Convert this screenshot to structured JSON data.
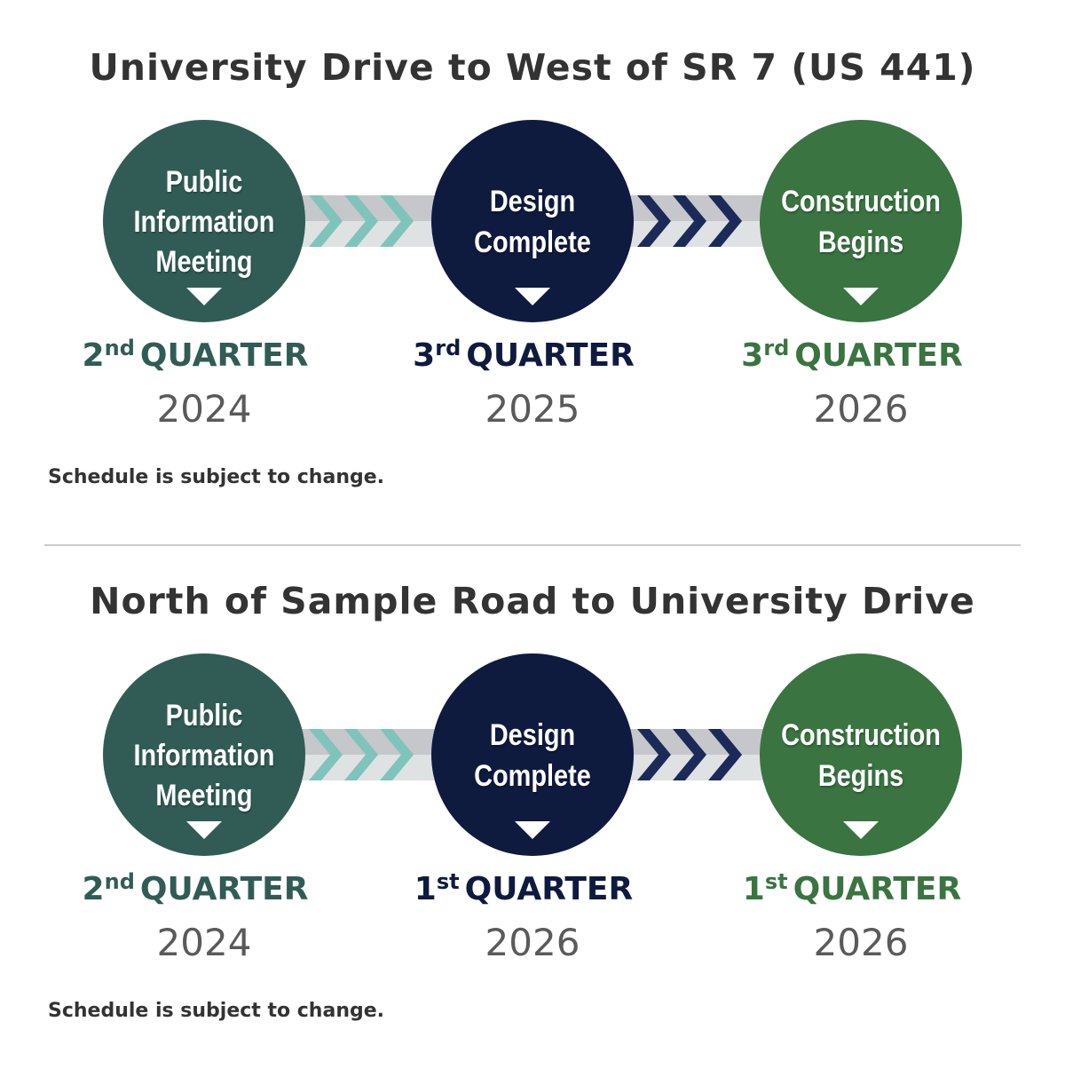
{
  "colors": {
    "meeting": "#315c56",
    "design": "#0f1a3f",
    "construction": "#3a7441",
    "meeting_chevron": "#7fc4bb",
    "design_chevron": "#1c2a5a",
    "bar_light": "#dfe2e3",
    "bar_dark": "#c5c7cb"
  },
  "sections": [
    {
      "title": "University Drive to West of SR 7 (US 441)",
      "milestones": [
        {
          "label_lines": [
            "Public",
            "Information",
            "Meeting"
          ],
          "ordinal": "2",
          "suffix": "nd",
          "quarter": "QUARTER",
          "year": "2024",
          "color_key": "meeting"
        },
        {
          "label_lines": [
            "Design",
            "Complete"
          ],
          "ordinal": "3",
          "suffix": "rd",
          "quarter": "QUARTER",
          "year": "2025",
          "color_key": "design"
        },
        {
          "label_lines": [
            "Construction",
            "Begins"
          ],
          "ordinal": "3",
          "suffix": "rd",
          "quarter": "QUARTER",
          "year": "2026",
          "color_key": "construction"
        }
      ],
      "note": "Schedule is subject to change."
    },
    {
      "title": "North of Sample Road to University Drive",
      "milestones": [
        {
          "label_lines": [
            "Public",
            "Information",
            "Meeting"
          ],
          "ordinal": "2",
          "suffix": "nd",
          "quarter": "QUARTER",
          "year": "2024",
          "color_key": "meeting"
        },
        {
          "label_lines": [
            "Design",
            "Complete"
          ],
          "ordinal": "1",
          "suffix": "st",
          "quarter": "QUARTER",
          "year": "2026",
          "color_key": "design"
        },
        {
          "label_lines": [
            "Construction",
            "Begins"
          ],
          "ordinal": "1",
          "suffix": "st",
          "quarter": "QUARTER",
          "year": "2026",
          "color_key": "construction"
        }
      ],
      "note": "Schedule is subject to change."
    }
  ]
}
